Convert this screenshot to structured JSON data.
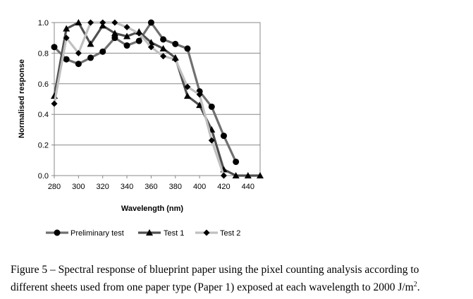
{
  "chart_data": {
    "type": "line",
    "title": "",
    "xlabel": "Wavelength (nm)",
    "ylabel": "Normalised response",
    "xlim": [
      280,
      450
    ],
    "ylim": [
      0.0,
      1.0
    ],
    "xticks": [
      "280",
      "300",
      "320",
      "340",
      "360",
      "380",
      "400",
      "420",
      "440"
    ],
    "yticks": [
      "0.0",
      "0.2",
      "0.4",
      "0.6",
      "0.8",
      "1.0"
    ],
    "grid": "horizontal",
    "legend_position": "bottom",
    "series": [
      {
        "name": "Preliminary test",
        "marker": "circle",
        "color": "#707070",
        "x": [
          280,
          290,
          300,
          310,
          320,
          330,
          340,
          350,
          360,
          370,
          380,
          390,
          400,
          410,
          420,
          430
        ],
        "y": [
          0.84,
          0.76,
          0.73,
          0.77,
          0.81,
          0.9,
          0.85,
          0.88,
          1.0,
          0.89,
          0.86,
          0.83,
          0.55,
          0.45,
          0.26,
          0.09
        ]
      },
      {
        "name": "Test 1",
        "marker": "triangle",
        "color": "#505050",
        "x": [
          280,
          290,
          300,
          310,
          320,
          330,
          340,
          350,
          360,
          370,
          380,
          390,
          400,
          410,
          420,
          430,
          440,
          450
        ],
        "y": [
          0.52,
          0.96,
          1.0,
          0.86,
          0.98,
          0.93,
          0.91,
          0.94,
          0.87,
          0.83,
          0.77,
          0.52,
          0.46,
          0.3,
          0.04,
          0.0,
          0.0,
          0.0
        ]
      },
      {
        "name": "Test 2",
        "marker": "diamond",
        "color": "#c0c0c0",
        "x": [
          280,
          290,
          300,
          310,
          320,
          330,
          340,
          350,
          360,
          370,
          380,
          390,
          400,
          410,
          420
        ],
        "y": [
          0.47,
          0.9,
          0.8,
          1.0,
          1.0,
          1.0,
          0.97,
          0.93,
          0.84,
          0.78,
          0.76,
          0.58,
          0.53,
          0.23,
          0.0
        ]
      }
    ]
  },
  "caption": {
    "line1": "Figure 5 – Spectral response of blueprint paper using the pixel counting analysis according to",
    "line2_main": "different sheets used from one paper type (Paper 1) exposed at each wavelength to 2000 J/m",
    "line2_sup": "2",
    "line2_end": "."
  }
}
